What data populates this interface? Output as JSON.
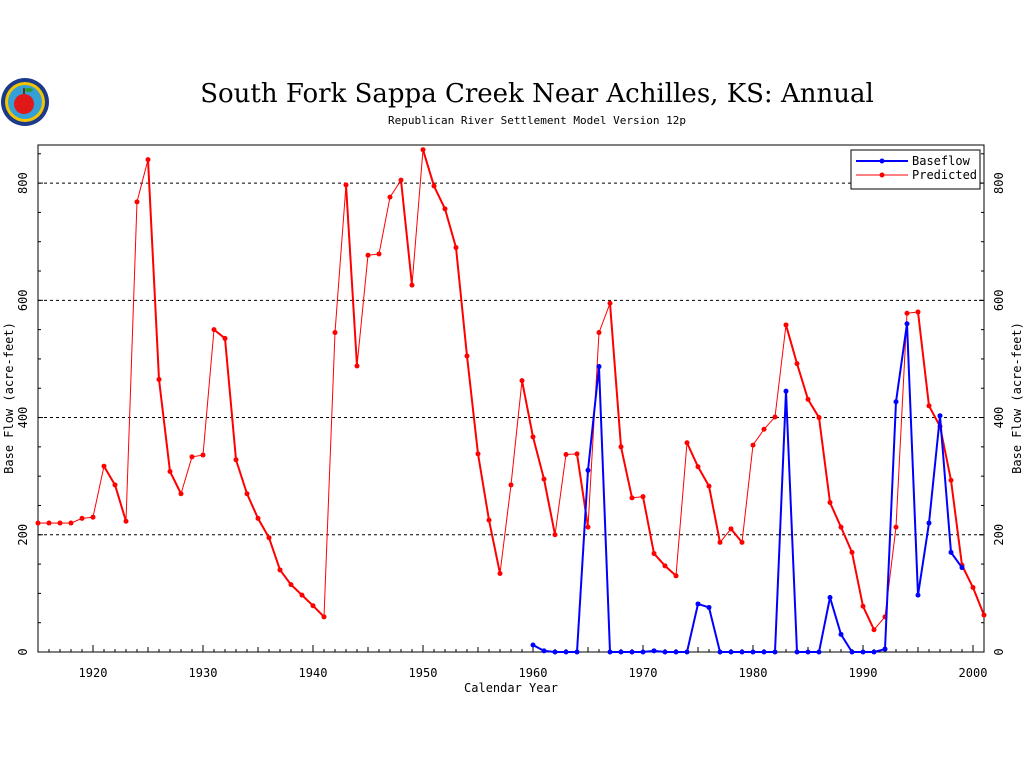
{
  "chart_data": {
    "type": "line",
    "title": "South Fork Sappa Creek Near Achilles, KS: Annual",
    "subtitle": "Republican River Settlement Model Version 12p",
    "xlabel": "Calendar Year",
    "ylabel": "Base Flow (acre-feet)",
    "ylabel_right": "Base Flow (acre-feet)",
    "xlim": [
      1915,
      2001
    ],
    "ylim": [
      0,
      865
    ],
    "xticks": [
      1920,
      1930,
      1940,
      1950,
      1960,
      1970,
      1980,
      1990,
      2000
    ],
    "yticks": [
      0,
      200,
      400,
      600,
      800
    ],
    "grid_y_dashed": [
      200,
      400,
      600,
      800
    ],
    "legend_position": "top-right",
    "series": [
      {
        "name": "Baseflow",
        "color": "#0000ff",
        "x": [
          1960,
          1961,
          1962,
          1963,
          1964,
          1965,
          1966,
          1967,
          1968,
          1969,
          1970,
          1971,
          1972,
          1973,
          1974,
          1975,
          1976,
          1977,
          1978,
          1979,
          1980,
          1981,
          1982,
          1983,
          1984,
          1985,
          1986,
          1987,
          1988,
          1989,
          1990,
          1991,
          1992,
          1993,
          1994,
          1995,
          1996,
          1997,
          1998,
          1999
        ],
        "y": [
          12,
          2,
          0,
          0,
          0,
          310,
          487,
          0,
          0,
          0,
          0,
          2,
          0,
          0,
          0,
          82,
          76,
          0,
          0,
          0,
          0,
          0,
          0,
          445,
          0,
          0,
          0,
          93,
          30,
          0,
          0,
          0,
          5,
          427,
          560,
          97,
          220,
          403,
          170,
          144
        ]
      },
      {
        "name": "Predicted",
        "color": "#ff0000",
        "x": [
          1915,
          1916,
          1917,
          1918,
          1919,
          1920,
          1921,
          1922,
          1923,
          1924,
          1925,
          1926,
          1927,
          1928,
          1929,
          1930,
          1931,
          1932,
          1933,
          1934,
          1935,
          1936,
          1937,
          1938,
          1939,
          1940,
          1941,
          1942,
          1943,
          1944,
          1945,
          1946,
          1947,
          1948,
          1949,
          1950,
          1951,
          1952,
          1953,
          1954,
          1955,
          1956,
          1957,
          1958,
          1959,
          1960,
          1961,
          1962,
          1963,
          1964,
          1965,
          1966,
          1967,
          1968,
          1969,
          1970,
          1971,
          1972,
          1973,
          1974,
          1975,
          1976,
          1977,
          1978,
          1979,
          1980,
          1981,
          1982,
          1983,
          1984,
          1985,
          1986,
          1987,
          1988,
          1989,
          1990,
          1991,
          1992,
          1993,
          1994,
          1995,
          1996,
          1997,
          1998,
          1999,
          2000,
          2001
        ],
        "y": [
          220,
          220,
          220,
          220,
          228,
          230,
          317,
          285,
          223,
          768,
          840,
          465,
          308,
          270,
          333,
          336,
          550,
          535,
          328,
          270,
          228,
          195,
          140,
          115,
          97,
          79,
          60,
          545,
          797,
          488,
          677,
          679,
          776,
          805,
          626,
          857,
          795,
          756,
          690,
          505,
          338,
          225,
          134,
          285,
          463,
          367,
          295,
          200,
          337,
          338,
          213,
          545,
          595,
          350,
          263,
          265,
          168,
          147,
          130,
          357,
          316,
          283,
          187,
          210,
          187,
          353,
          380,
          401,
          558,
          492,
          431,
          400,
          255,
          213,
          170,
          78,
          38,
          60,
          213,
          578,
          580,
          420,
          385,
          293,
          148,
          110,
          63
        ]
      }
    ]
  }
}
